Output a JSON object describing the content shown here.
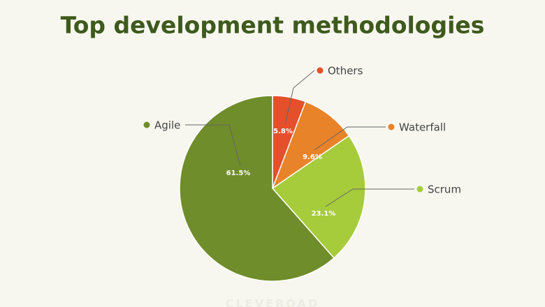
{
  "chart_data": {
    "type": "pie",
    "title": "Top development methodologies",
    "categories": [
      "Others",
      "Waterfall",
      "Scrum",
      "Agile"
    ],
    "values": [
      5.8,
      9.6,
      23.1,
      61.5
    ],
    "value_labels": [
      "5.8%",
      "9.6%",
      "23.1%",
      "61.5%"
    ],
    "colors": [
      "#e4502a",
      "#e8832a",
      "#a6cc3b",
      "#6f8d2b"
    ],
    "watermark": "CLEVEROAD"
  }
}
